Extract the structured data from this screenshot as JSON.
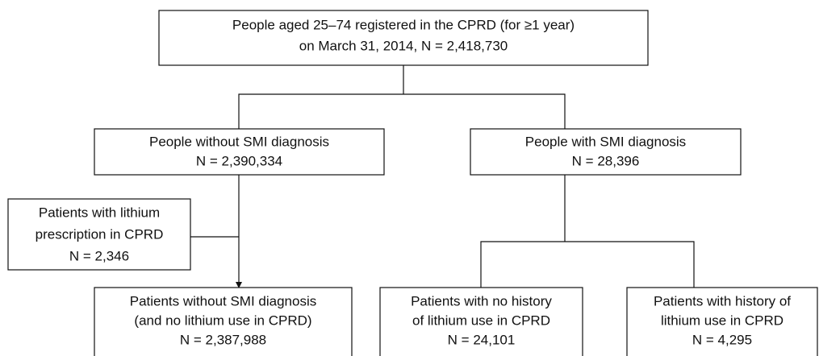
{
  "nodes": [
    {
      "lines": [
        "People aged 25–74 registered in the CPRD (for ≥1 year)",
        "on March 31, 2014, N = 2,418,730"
      ]
    },
    {
      "lines": [
        "People without SMI diagnosis",
        "N = 2,390,334"
      ]
    },
    {
      "lines": [
        "People with SMI diagnosis",
        "N = 28,396"
      ]
    },
    {
      "lines": [
        "Patients with lithium",
        "prescription in CPRD",
        "N = 2,346"
      ]
    },
    {
      "lines": [
        "Patients without SMI diagnosis",
        "(and no lithium use in CPRD)",
        "N = 2,387,988"
      ]
    },
    {
      "lines": [
        "Patients with no history",
        "of lithium use in CPRD",
        "N = 24,101"
      ]
    },
    {
      "lines": [
        "Patients with history of",
        "lithium use in CPRD",
        "N = 4,295"
      ]
    }
  ]
}
